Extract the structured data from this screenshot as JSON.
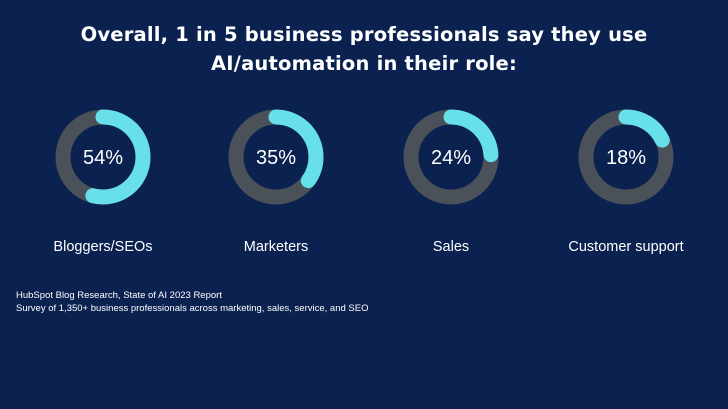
{
  "title": {
    "line1": "Overall, 1 in 5 business professionals say they use",
    "line2": "AI/automation in their role:"
  },
  "colors": {
    "background": "#0b2150",
    "track": "#4a5159",
    "fill": "#67e0ea",
    "text": "#ffffff"
  },
  "chart_data": {
    "type": "pie",
    "variant": "donut",
    "categories": [
      "Bloggers/SEOs",
      "Marketers",
      "Sales",
      "Customer support"
    ],
    "values": [
      54,
      35,
      24,
      18
    ],
    "value_labels": [
      "54%",
      "35%",
      "24%",
      "18%"
    ],
    "max": 100
  },
  "source": {
    "line1": "HubSpot Blog Research, State of AI 2023 Report",
    "line2": "Survey of 1,350+ business professionals across marketing, sales, service, and SEO"
  }
}
